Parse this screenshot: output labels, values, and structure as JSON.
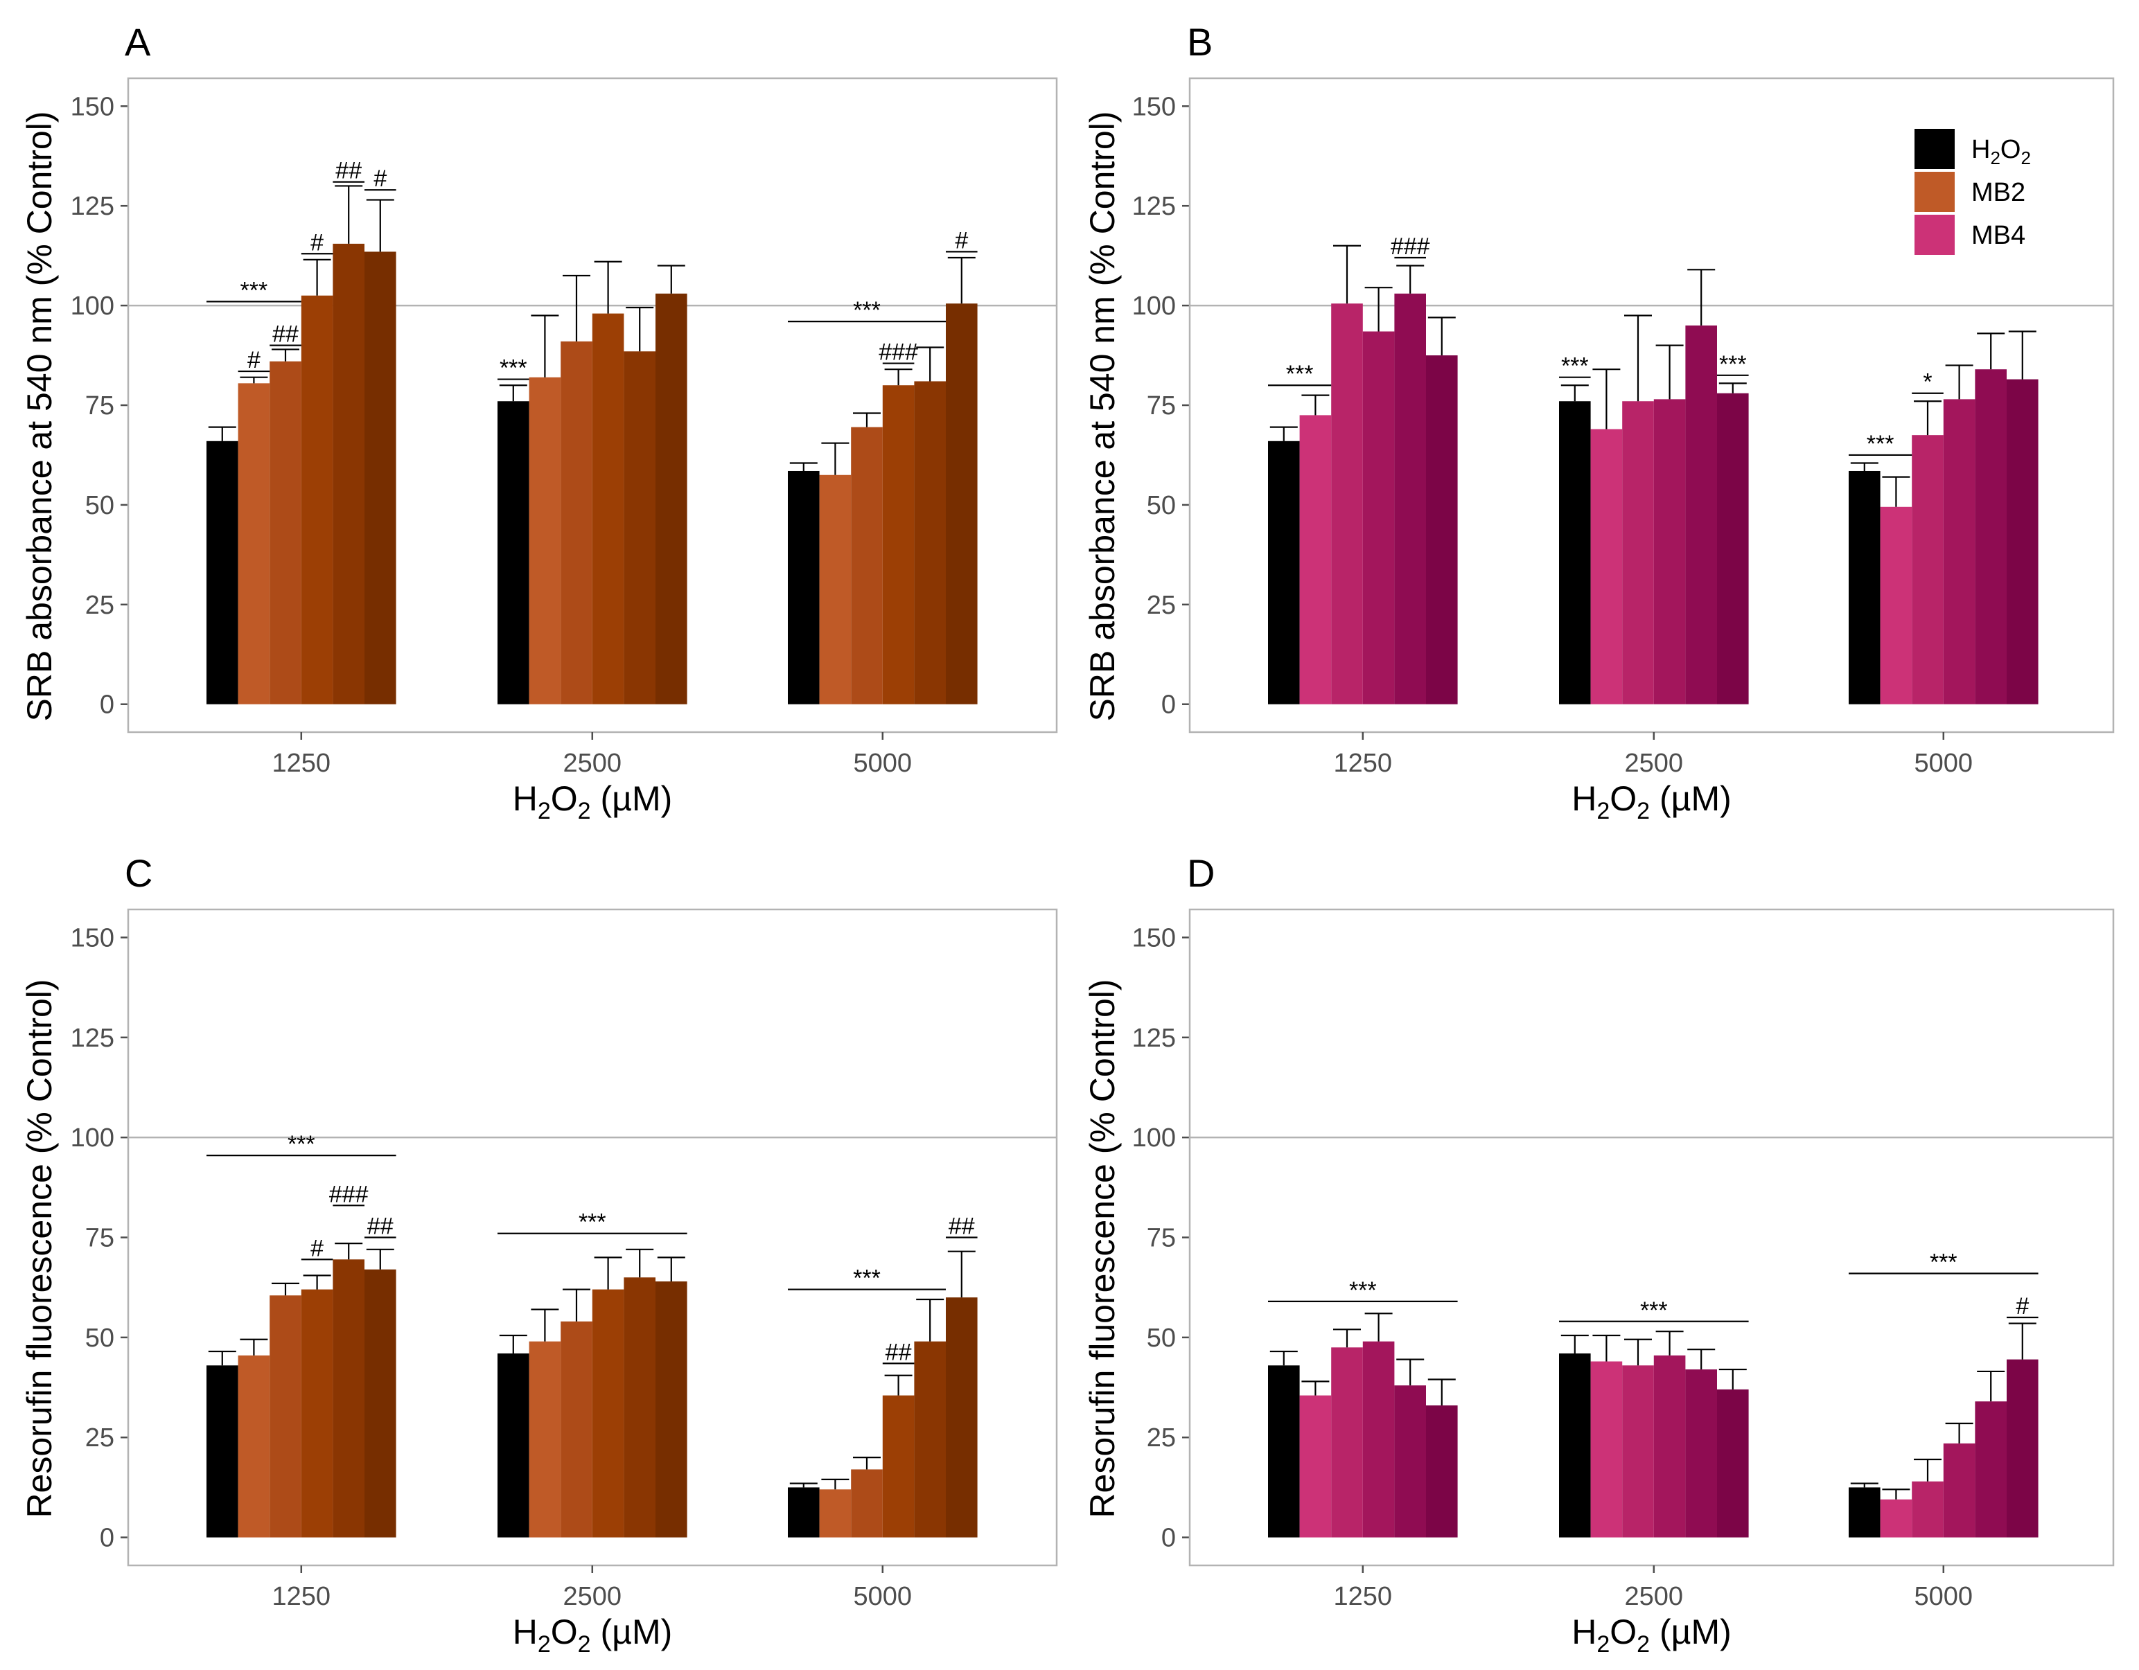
{
  "colors": {
    "h2o2": "#000000",
    "mb2": [
      "#bf5a27",
      "#ad4b18",
      "#9c3f05",
      "#8a3602",
      "#772e00"
    ],
    "mb4": [
      "#cc3277",
      "#b82468",
      "#a3165c",
      "#8f0c52",
      "#7c0547"
    ],
    "axis": "#4d4d4d",
    "panel_border": "#b3b3b3",
    "refline": "#b3b3b3"
  },
  "legend": {
    "items": [
      {
        "label_main": "H",
        "sub1": "2",
        "mid": "O",
        "sub2": "2",
        "label": "H2O2"
      },
      {
        "label": "MB2"
      },
      {
        "label": "MB4"
      }
    ]
  },
  "chart_data": [
    {
      "panel": "A",
      "type": "bar",
      "title": "A",
      "ylabel": "SRB absorbance at 540 nm (% Control)",
      "xlabel_parts": [
        "H",
        "2",
        "O",
        "2",
        " (µM)"
      ],
      "ylim": [
        -7,
        157
      ],
      "yticks": [
        "0",
        "25",
        "50",
        "75",
        "100",
        "125",
        "150"
      ],
      "ytick_values": [
        0,
        25,
        50,
        75,
        100,
        125,
        150
      ],
      "reference_line": 100,
      "categories": [
        "1250",
        "2500",
        "5000"
      ],
      "derivative": "MB2",
      "groups": [
        {
          "values": [
            66,
            80.5,
            86,
            102.5,
            115.5,
            113.5
          ],
          "errors": [
            3.5,
            1.5,
            3,
            9,
            14.5,
            13
          ]
        },
        {
          "values": [
            76,
            82,
            91,
            98,
            88.5,
            103
          ],
          "errors": [
            4,
            15.5,
            16.5,
            13,
            11,
            7
          ]
        },
        {
          "values": [
            58.5,
            57.5,
            69.5,
            80,
            81,
            100.5
          ],
          "errors": [
            2,
            8,
            3.5,
            4,
            8.5,
            11.5
          ]
        }
      ],
      "annotations": [
        {
          "group": 0,
          "bar_from": 0,
          "bar_to": 2,
          "y": 101,
          "text": "***"
        },
        {
          "group": 0,
          "bar_from": 1,
          "bar_to": 1,
          "y": 83.5,
          "text": "#"
        },
        {
          "group": 0,
          "bar_from": 2,
          "bar_to": 2,
          "y": 90,
          "text": "##"
        },
        {
          "group": 0,
          "bar_from": 3,
          "bar_to": 3,
          "y": 113,
          "text": "#"
        },
        {
          "group": 0,
          "bar_from": 4,
          "bar_to": 4,
          "y": 131,
          "text": "##"
        },
        {
          "group": 0,
          "bar_from": 5,
          "bar_to": 5,
          "y": 129,
          "text": "#"
        },
        {
          "group": 1,
          "bar_from": 0,
          "bar_to": 0,
          "y": 81.5,
          "text": "***"
        },
        {
          "group": 2,
          "bar_from": 0,
          "bar_to": 4,
          "y": 96,
          "text": "***"
        },
        {
          "group": 2,
          "bar_from": 3,
          "bar_to": 3,
          "y": 85.5,
          "text": "###"
        },
        {
          "group": 2,
          "bar_from": 5,
          "bar_to": 5,
          "y": 113.5,
          "text": "#"
        }
      ]
    },
    {
      "panel": "B",
      "type": "bar",
      "title": "B",
      "ylabel": "SRB absorbance at 540 nm (% Control)",
      "xlabel_parts": [
        "H",
        "2",
        "O",
        "2",
        " (µM)"
      ],
      "ylim": [
        -7,
        157
      ],
      "yticks": [
        "0",
        "25",
        "50",
        "75",
        "100",
        "125",
        "150"
      ],
      "ytick_values": [
        0,
        25,
        50,
        75,
        100,
        125,
        150
      ],
      "reference_line": 100,
      "categories": [
        "1250",
        "2500",
        "5000"
      ],
      "derivative": "MB4",
      "groups": [
        {
          "values": [
            66,
            72.5,
            100.5,
            93.5,
            103,
            87.5
          ],
          "errors": [
            3.5,
            5,
            14.5,
            11,
            7,
            9.5
          ]
        },
        {
          "values": [
            76,
            69,
            76,
            76.5,
            95,
            78
          ],
          "errors": [
            4,
            15,
            21.5,
            13.5,
            14,
            2.5
          ]
        },
        {
          "values": [
            58.5,
            49.5,
            67.5,
            76.5,
            84,
            81.5
          ],
          "errors": [
            2,
            7.5,
            8.5,
            8.5,
            9,
            12
          ]
        }
      ],
      "annotations": [
        {
          "group": 0,
          "bar_from": 0,
          "bar_to": 1,
          "y": 80,
          "text": "***"
        },
        {
          "group": 0,
          "bar_from": 4,
          "bar_to": 4,
          "y": 112,
          "text": "###"
        },
        {
          "group": 1,
          "bar_from": 0,
          "bar_to": 0,
          "y": 82,
          "text": "***"
        },
        {
          "group": 1,
          "bar_from": 5,
          "bar_to": 5,
          "y": 82.5,
          "text": "***"
        },
        {
          "group": 2,
          "bar_from": 0,
          "bar_to": 1,
          "y": 62.5,
          "text": "***"
        },
        {
          "group": 2,
          "bar_from": 2,
          "bar_to": 2,
          "y": 78,
          "text": "*"
        }
      ]
    },
    {
      "panel": "C",
      "type": "bar",
      "title": "C",
      "ylabel": "Resorufin fluorescence (% Control)",
      "xlabel_parts": [
        "H",
        "2",
        "O",
        "2",
        " (µM)"
      ],
      "ylim": [
        -7,
        157
      ],
      "yticks": [
        "0",
        "25",
        "50",
        "75",
        "100",
        "125",
        "150"
      ],
      "ytick_values": [
        0,
        25,
        50,
        75,
        100,
        125,
        150
      ],
      "reference_line": 100,
      "categories": [
        "1250",
        "2500",
        "5000"
      ],
      "derivative": "MB2",
      "groups": [
        {
          "values": [
            43,
            45.5,
            60.5,
            62,
            69.5,
            67
          ],
          "errors": [
            3.5,
            4,
            3,
            3.5,
            4,
            5
          ]
        },
        {
          "values": [
            46,
            49,
            54,
            62,
            65,
            64
          ],
          "errors": [
            4.5,
            8,
            8,
            8,
            7,
            6
          ]
        },
        {
          "values": [
            12.5,
            12,
            17,
            35.5,
            49,
            60
          ],
          "errors": [
            1,
            2.5,
            3,
            5,
            10.5,
            11.5
          ]
        }
      ],
      "annotations": [
        {
          "group": 0,
          "bar_from": 0,
          "bar_to": 5,
          "y": 95.5,
          "text": "***"
        },
        {
          "group": 0,
          "bar_from": 3,
          "bar_to": 3,
          "y": 69.5,
          "text": "#"
        },
        {
          "group": 0,
          "bar_from": 4,
          "bar_to": 4,
          "y": 83,
          "text": "###"
        },
        {
          "group": 0,
          "bar_from": 5,
          "bar_to": 5,
          "y": 75,
          "text": "##"
        },
        {
          "group": 1,
          "bar_from": 0,
          "bar_to": 5,
          "y": 76,
          "text": "***"
        },
        {
          "group": 2,
          "bar_from": 0,
          "bar_to": 4,
          "y": 62,
          "text": "***"
        },
        {
          "group": 2,
          "bar_from": 3,
          "bar_to": 3,
          "y": 43.5,
          "text": "##"
        },
        {
          "group": 2,
          "bar_from": 5,
          "bar_to": 5,
          "y": 75,
          "text": "##"
        }
      ]
    },
    {
      "panel": "D",
      "type": "bar",
      "title": "D",
      "ylabel": "Resorufin fluorescence (% Control)",
      "xlabel_parts": [
        "H",
        "2",
        "O",
        "2",
        " (µM)"
      ],
      "ylim": [
        -7,
        157
      ],
      "yticks": [
        "0",
        "25",
        "50",
        "75",
        "100",
        "125",
        "150"
      ],
      "ytick_values": [
        0,
        25,
        50,
        75,
        100,
        125,
        150
      ],
      "reference_line": 100,
      "categories": [
        "1250",
        "2500",
        "5000"
      ],
      "derivative": "MB4",
      "groups": [
        {
          "values": [
            43,
            35.5,
            47.5,
            49,
            38,
            33
          ],
          "errors": [
            3.5,
            3.5,
            4.5,
            7,
            6.5,
            6.5
          ]
        },
        {
          "values": [
            46,
            44,
            43,
            45.5,
            42,
            37
          ],
          "errors": [
            4.5,
            6.5,
            6.5,
            6,
            5,
            5
          ]
        },
        {
          "values": [
            12.5,
            9.5,
            14,
            23.5,
            34,
            44.5
          ],
          "errors": [
            1,
            2.5,
            5.5,
            5,
            7.5,
            9
          ]
        }
      ],
      "annotations": [
        {
          "group": 0,
          "bar_from": 0,
          "bar_to": 5,
          "y": 59,
          "text": "***"
        },
        {
          "group": 1,
          "bar_from": 0,
          "bar_to": 5,
          "y": 54,
          "text": "***"
        },
        {
          "group": 2,
          "bar_from": 0,
          "bar_to": 5,
          "y": 66,
          "text": "***"
        },
        {
          "group": 2,
          "bar_from": 5,
          "bar_to": 5,
          "y": 55,
          "text": "#"
        }
      ]
    }
  ]
}
